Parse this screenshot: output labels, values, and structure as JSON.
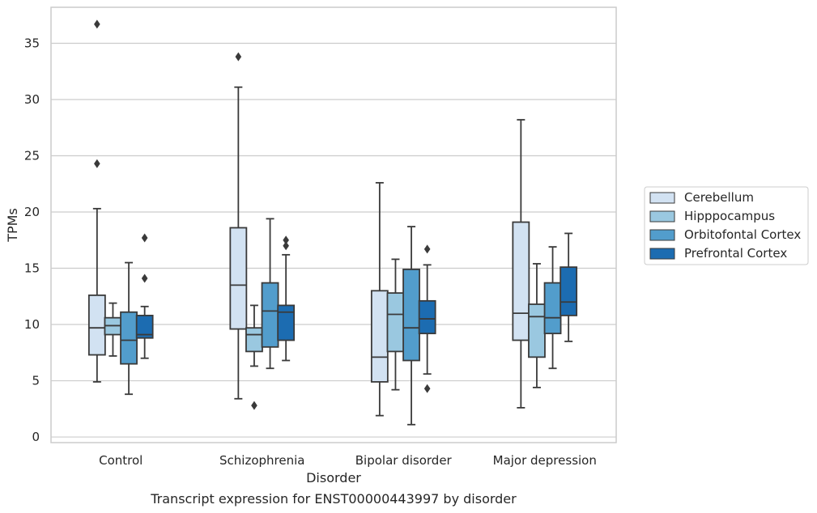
{
  "chart_data": {
    "type": "box",
    "xlabel": "Disorder",
    "ylabel": "TPMs",
    "caption": "Transcript expression for ENST00000443997 by disorder",
    "ylim": [
      -0.5,
      38.2
    ],
    "yticks": [
      0,
      5,
      10,
      15,
      20,
      25,
      30,
      35
    ],
    "grid": "horizontal",
    "legend_position": "right",
    "categories": [
      "Control",
      "Schizophrenia",
      "Bipolar disorder",
      "Major depression"
    ],
    "series": [
      {
        "name": "Cerebellum",
        "color": "#d2e2f2",
        "boxes": [
          {
            "whisker_low": 4.9,
            "q1": 7.3,
            "median": 9.7,
            "q3": 12.6,
            "whisker_high": 20.3,
            "outliers": [
              24.3,
              36.7
            ]
          },
          {
            "whisker_low": 3.4,
            "q1": 9.6,
            "median": 13.5,
            "q3": 18.6,
            "whisker_high": 31.1,
            "outliers": [
              33.8
            ]
          },
          {
            "whisker_low": 1.9,
            "q1": 4.9,
            "median": 7.1,
            "q3": 13.0,
            "whisker_high": 22.6,
            "outliers": []
          },
          {
            "whisker_low": 2.6,
            "q1": 8.6,
            "median": 11.0,
            "q3": 19.1,
            "whisker_high": 28.2,
            "outliers": []
          }
        ]
      },
      {
        "name": "Hipppocampus",
        "color": "#9ac8e0",
        "boxes": [
          {
            "whisker_low": 7.2,
            "q1": 9.1,
            "median": 9.9,
            "q3": 10.6,
            "whisker_high": 11.9,
            "outliers": []
          },
          {
            "whisker_low": 6.3,
            "q1": 7.6,
            "median": 9.1,
            "q3": 9.7,
            "whisker_high": 11.7,
            "outliers": [
              2.8
            ]
          },
          {
            "whisker_low": 4.2,
            "q1": 7.6,
            "median": 10.9,
            "q3": 12.8,
            "whisker_high": 15.8,
            "outliers": []
          },
          {
            "whisker_low": 4.4,
            "q1": 7.1,
            "median": 10.7,
            "q3": 11.8,
            "whisker_high": 15.4,
            "outliers": []
          }
        ]
      },
      {
        "name": "Orbitofontal Cortex",
        "color": "#529dcc",
        "boxes": [
          {
            "whisker_low": 3.8,
            "q1": 6.5,
            "median": 8.6,
            "q3": 11.1,
            "whisker_high": 15.5,
            "outliers": []
          },
          {
            "whisker_low": 6.1,
            "q1": 8.0,
            "median": 11.2,
            "q3": 13.7,
            "whisker_high": 19.4,
            "outliers": []
          },
          {
            "whisker_low": 1.1,
            "q1": 6.8,
            "median": 9.7,
            "q3": 14.9,
            "whisker_high": 18.7,
            "outliers": []
          },
          {
            "whisker_low": 6.1,
            "q1": 9.2,
            "median": 10.6,
            "q3": 13.7,
            "whisker_high": 16.9,
            "outliers": []
          }
        ]
      },
      {
        "name": "Prefrontal Cortex",
        "color": "#1c6cb1",
        "boxes": [
          {
            "whisker_low": 7.0,
            "q1": 8.8,
            "median": 9.1,
            "q3": 10.8,
            "whisker_high": 11.6,
            "outliers": [
              14.1,
              17.7
            ]
          },
          {
            "whisker_low": 6.8,
            "q1": 8.6,
            "median": 11.1,
            "q3": 11.7,
            "whisker_high": 16.2,
            "outliers": [
              17.0,
              17.5
            ]
          },
          {
            "whisker_low": 5.6,
            "q1": 9.2,
            "median": 10.5,
            "q3": 12.1,
            "whisker_high": 15.3,
            "outliers": [
              4.3,
              16.7
            ]
          },
          {
            "whisker_low": 8.5,
            "q1": 10.8,
            "median": 12.0,
            "q3": 15.1,
            "whisker_high": 18.1,
            "outliers": []
          }
        ]
      }
    ]
  }
}
